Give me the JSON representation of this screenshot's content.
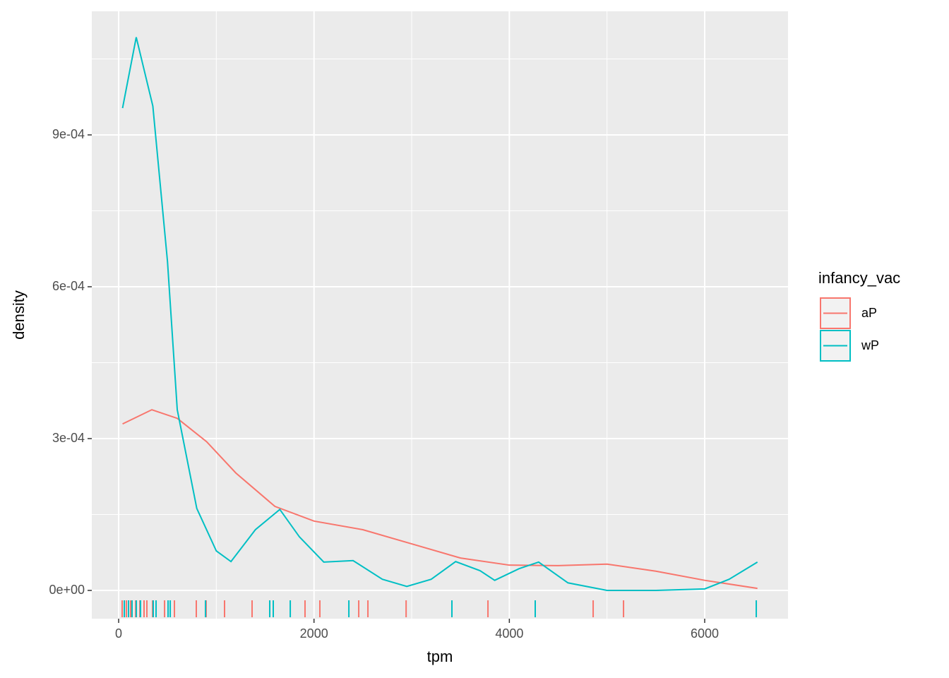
{
  "chart_data": {
    "type": "density",
    "x_label": "tpm",
    "y_label": "density",
    "legend_title": "infancy_vac",
    "legend": "right",
    "grid": true,
    "xlim": [
      -275,
      6853
    ],
    "ylim": [
      -5.58e-05,
      0.0011442
    ],
    "xticks": [
      0,
      2000,
      4000,
      6000
    ],
    "yticks": [
      {
        "value": 0,
        "label": "0e+00"
      },
      {
        "value": 0.0003,
        "label": "3e-04"
      },
      {
        "value": 0.0006,
        "label": "6e-04"
      },
      {
        "value": 0.0009,
        "label": "9e-04"
      }
    ],
    "series": [
      {
        "name": "aP",
        "color": "#F8766D",
        "x": [
          40,
          340,
          600,
          900,
          1200,
          1600,
          2000,
          2500,
          3000,
          3500,
          4000,
          4500,
          5000,
          5500,
          6000,
          6540
        ],
        "values": [
          0.000329,
          0.000357,
          0.00034,
          0.000294,
          0.000232,
          0.000166,
          0.000137,
          0.00012,
          9.2e-05,
          6.4e-05,
          5e-05,
          4.9e-05,
          5.2e-05,
          3.8e-05,
          2e-05,
          4e-06
        ],
        "rug": [
          36,
          79,
          123,
          174,
          217,
          260,
          289,
          347,
          470,
          571,
          795,
          896,
          1084,
          1366,
          1908,
          2060,
          2458,
          2552,
          2943,
          3781,
          4858,
          5169
        ]
      },
      {
        "name": "wP",
        "color": "#00BFC4",
        "x": [
          40,
          180,
          350,
          500,
          600,
          800,
          1000,
          1150,
          1400,
          1650,
          1850,
          2100,
          2400,
          2700,
          2950,
          3200,
          3450,
          3700,
          3850,
          4100,
          4300,
          4600,
          5000,
          5500,
          6000,
          6250,
          6540
        ],
        "values": [
          0.000953,
          0.001093,
          0.000957,
          0.00065,
          0.000357,
          0.000162,
          7.8e-05,
          5.7e-05,
          0.00012,
          0.00016,
          0.000106,
          5.6e-05,
          5.9e-05,
          2.2e-05,
          8e-06,
          2.2e-05,
          5.7e-05,
          3.9e-05,
          2e-05,
          4.3e-05,
          5.6e-05,
          1.5e-05,
          0,
          0,
          3e-06,
          2.2e-05,
          5.6e-05
        ],
        "rug": [
          58,
          101,
          137,
          181,
          224,
          354,
          383,
          506,
          528,
          889,
          1547,
          1583,
          1757,
          2357,
          3412,
          4265,
          6528
        ]
      }
    ]
  }
}
